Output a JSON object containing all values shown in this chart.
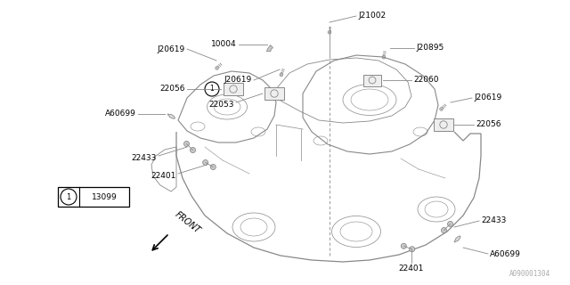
{
  "bg_color": "#ffffff",
  "line_color": "#888888",
  "text_color": "#000000",
  "watermark": "A090001304",
  "legend_text": "13099",
  "front_label": "FRONT",
  "figsize": [
    6.4,
    3.2
  ],
  "dpi": 100
}
